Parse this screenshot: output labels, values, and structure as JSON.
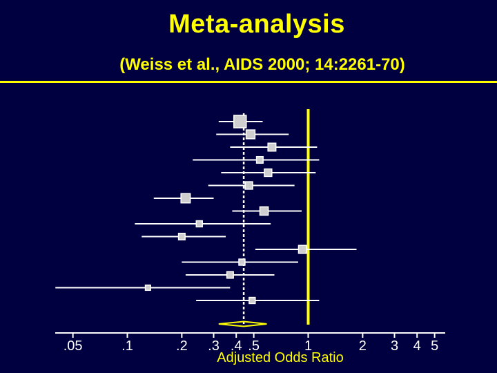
{
  "slide": {
    "title": "Meta-analysis",
    "subtitle": "(Weiss et al., AIDS 2000; 14:2261-70)"
  },
  "colors": {
    "background": "#000040",
    "title": "#ffff00",
    "reference_line": "#ffff00",
    "summary_diamond": "#ffff00",
    "studies": "#ffffff",
    "pooled_line": "#ffffff"
  },
  "chart_data": {
    "type": "forest",
    "xlabel": "Adjusted Odds Ratio",
    "x_scale": "log",
    "xlim": [
      0.04,
      6
    ],
    "ticks": [
      {
        "value": 0.05,
        "label": ".05"
      },
      {
        "value": 0.1,
        "label": ".1"
      },
      {
        "value": 0.2,
        "label": ".2"
      },
      {
        "value": 0.3,
        "label": ".3"
      },
      {
        "value": 0.4,
        "label": ".4"
      },
      {
        "value": 0.5,
        "label": ".5"
      },
      {
        "value": 1,
        "label": "1"
      },
      {
        "value": 2,
        "label": "2"
      },
      {
        "value": 3,
        "label": "3"
      },
      {
        "value": 4,
        "label": "4"
      },
      {
        "value": 5,
        "label": "5"
      }
    ],
    "reference_value": 1,
    "pooled_estimate": 0.44,
    "summary": {
      "estimate": 0.44,
      "lower": 0.32,
      "upper": 0.59
    },
    "studies": [
      {
        "estimate": 0.42,
        "lower": 0.32,
        "upper": 0.56,
        "weight": 1.0
      },
      {
        "estimate": 0.48,
        "lower": 0.31,
        "upper": 0.78,
        "weight": 0.6
      },
      {
        "estimate": 0.63,
        "lower": 0.37,
        "upper": 1.12,
        "weight": 0.5
      },
      {
        "estimate": 0.54,
        "lower": 0.23,
        "upper": 1.15,
        "weight": 0.35
      },
      {
        "estimate": 0.6,
        "lower": 0.33,
        "upper": 1.1,
        "weight": 0.45
      },
      {
        "estimate": 0.47,
        "lower": 0.28,
        "upper": 0.84,
        "weight": 0.45
      },
      {
        "estimate": 0.21,
        "lower": 0.14,
        "upper": 0.3,
        "weight": 0.65
      },
      {
        "estimate": 0.57,
        "lower": 0.38,
        "upper": 0.92,
        "weight": 0.55
      },
      {
        "estimate": 0.25,
        "lower": 0.11,
        "upper": 0.62,
        "weight": 0.3
      },
      {
        "estimate": 0.2,
        "lower": 0.12,
        "upper": 0.35,
        "weight": 0.35
      },
      {
        "estimate": 0.93,
        "lower": 0.51,
        "upper": 1.85,
        "weight": 0.5
      },
      {
        "estimate": 0.43,
        "lower": 0.2,
        "upper": 0.88,
        "weight": 0.3
      },
      {
        "estimate": 0.37,
        "lower": 0.21,
        "upper": 0.65,
        "weight": 0.35
      },
      {
        "estimate": 0.13,
        "lower": 0.04,
        "upper": 0.37,
        "weight": 0.2
      },
      {
        "estimate": 0.49,
        "lower": 0.24,
        "upper": 1.15,
        "weight": 0.3
      }
    ]
  }
}
